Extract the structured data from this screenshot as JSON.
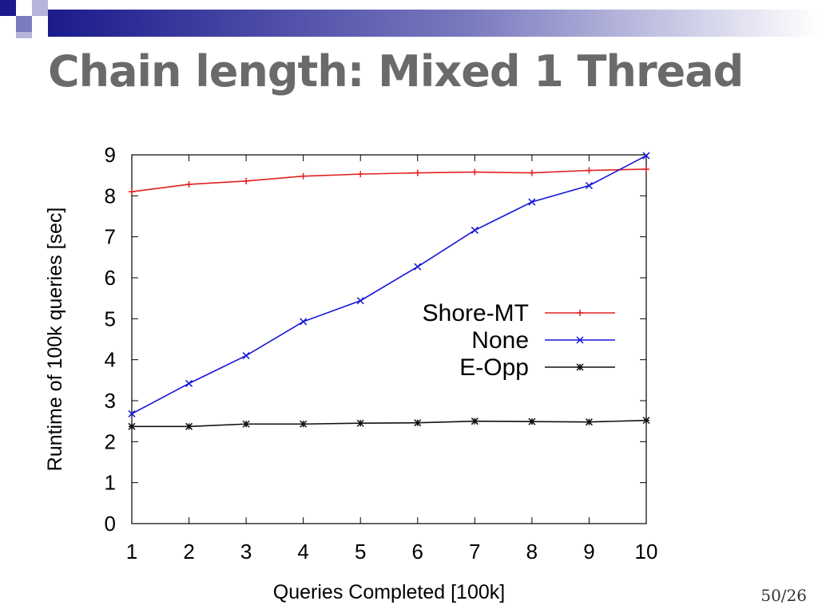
{
  "slide": {
    "title": "Chain length: Mixed 1 Thread",
    "slide_number": "50/26",
    "banner_colors": [
      "#1a1a8c",
      "#7a7abf",
      "#b5b5dc"
    ]
  },
  "chart_data": {
    "type": "line",
    "title": "",
    "xlabel": "Queries Completed [100k]",
    "ylabel": "Runtime of 100k queries [sec]",
    "x": [
      1,
      2,
      3,
      4,
      5,
      6,
      7,
      8,
      9,
      10
    ],
    "xlim": [
      1,
      10
    ],
    "ylim": [
      0,
      9
    ],
    "xticks": [
      1,
      2,
      3,
      4,
      5,
      6,
      7,
      8,
      9,
      10
    ],
    "yticks": [
      0,
      1,
      2,
      3,
      4,
      5,
      6,
      7,
      8,
      9
    ],
    "grid": false,
    "legend_position": "right-middle",
    "series": [
      {
        "name": "Shore-MT",
        "color": "#e02020",
        "marker": "plus",
        "values": [
          8.1,
          8.28,
          8.36,
          8.48,
          8.53,
          8.56,
          8.58,
          8.56,
          8.62,
          8.65
        ]
      },
      {
        "name": "None",
        "color": "#1515d9",
        "marker": "x",
        "values": [
          2.68,
          3.42,
          4.1,
          4.93,
          5.44,
          6.27,
          7.16,
          7.85,
          8.25,
          8.98
        ]
      },
      {
        "name": "E-Opp",
        "color": "#111111",
        "marker": "star",
        "values": [
          2.37,
          2.37,
          2.43,
          2.43,
          2.45,
          2.46,
          2.5,
          2.49,
          2.48,
          2.52
        ]
      }
    ]
  }
}
